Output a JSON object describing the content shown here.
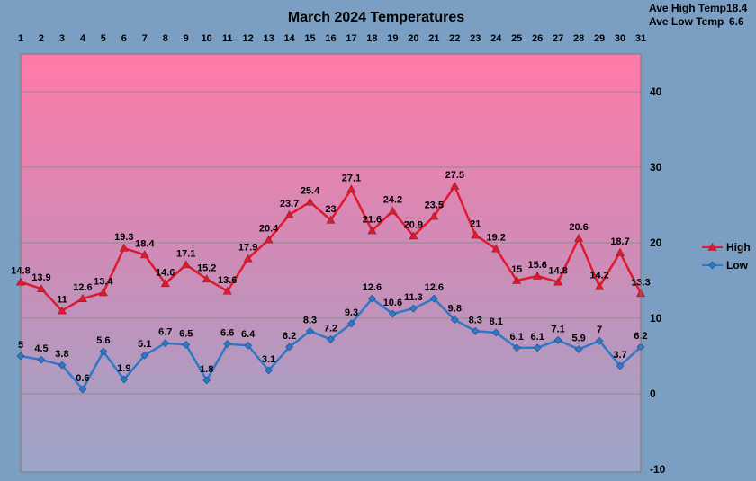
{
  "chart_data": {
    "type": "line",
    "title": "March 2024 Temperatures",
    "categories": [
      "1",
      "2",
      "3",
      "4",
      "5",
      "6",
      "7",
      "8",
      "9",
      "10",
      "11",
      "12",
      "13",
      "14",
      "15",
      "16",
      "17",
      "18",
      "19",
      "20",
      "21",
      "22",
      "23",
      "24",
      "25",
      "26",
      "27",
      "28",
      "29",
      "30",
      "31"
    ],
    "series": [
      {
        "name": "High",
        "color": "#e0192d",
        "values": [
          14.8,
          13.9,
          11,
          12.6,
          13.4,
          19.3,
          18.4,
          14.6,
          17.1,
          15.2,
          13.6,
          17.9,
          20.4,
          23.7,
          25.4,
          23,
          27.1,
          21.6,
          24.2,
          20.9,
          23.5,
          27.5,
          21,
          19.2,
          15,
          15.6,
          14.8,
          20.6,
          14.2,
          18.7,
          13.3
        ]
      },
      {
        "name": "Low",
        "color": "#2f78c8",
        "values": [
          5,
          4.5,
          3.8,
          0.6,
          5.6,
          1.9,
          5.1,
          6.7,
          6.5,
          1.8,
          6.6,
          6.4,
          3.1,
          6.2,
          8.3,
          7.2,
          9.3,
          12.6,
          10.6,
          11.3,
          12.6,
          9.8,
          8.3,
          8.1,
          6.1,
          6.1,
          7.1,
          5.9,
          7,
          3.7,
          6.2
        ]
      }
    ],
    "ylim": [
      -10,
      45
    ],
    "yticks": [
      -10,
      0,
      10,
      20,
      30,
      40
    ],
    "grid": true,
    "legend_position": "right",
    "xaxis_position": "top",
    "yaxis_position": "right"
  },
  "stats": {
    "ave_high_label": "Ave High Temp",
    "ave_high_value": "18.4",
    "ave_low_label": "Ave Low Temp",
    "ave_low_value": "6.6"
  }
}
